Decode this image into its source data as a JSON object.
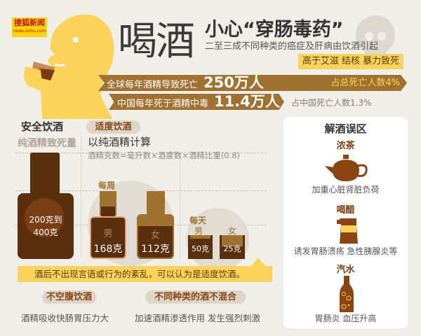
{
  "logo": {
    "name": "搜狐新闻",
    "url": "news.sohu.com"
  },
  "header": {
    "title": "喝酒",
    "headline": "小心“穿肠毒药”",
    "subtitle": "二至三成不同种类的癌症及肝病由饮酒引起",
    "callout": "高于艾滋 结核 暴力致死"
  },
  "stats": {
    "global": {
      "label": "全球每年酒精导致死亡",
      "value": "250万人",
      "share": "占总死亡人数4%"
    },
    "china": {
      "label": "中国每年死于酒精中毒",
      "value": "11.4万人",
      "share": "占中国死亡人数1.3%"
    }
  },
  "safe": {
    "title": "安全饮酒",
    "lethal_label": "纯酒精致死量",
    "lethal_value_1": "200克到",
    "lethal_value_2": "400克"
  },
  "moderate": {
    "tag": "适度饮酒",
    "basis": "以纯酒精计算",
    "formula": "酒精克数=毫升数×酒度数×酒精比重(0.8)",
    "weekly": {
      "label": "每周",
      "male": "男",
      "male_value": "168克",
      "female": "女",
      "female_value": "112克"
    },
    "daily": {
      "label": "每天",
      "male": "男",
      "male_value": "50克",
      "female": "女",
      "female_value": "25克"
    },
    "note": "酒后不出现言语或行为的紊乱，可以认为是适度饮酒。"
  },
  "tips": [
    {
      "tag": "不空腹饮酒",
      "text": "酒精吸收快肠胃压力大"
    },
    {
      "tag": "不同种类的酒不混合",
      "text": "加速酒精渗透作用 发生强烈刺激"
    }
  ],
  "myths": {
    "title": "解酒误区",
    "items": [
      {
        "name": "浓茶",
        "effect": "加重心脏肾脏负荷",
        "icon": "teapot-icon"
      },
      {
        "name": "喝醋",
        "effect": "诱发胃肠溃疡 急性胰腺炎等",
        "icon": "vinegar-jug-icon"
      },
      {
        "name": "汽水",
        "effect": "胃肠炎 血压升高",
        "icon": "soda-bottle-icon"
      }
    ]
  },
  "colors": {
    "brown": "#a0712f",
    "dark_brown": "#5a2f0e",
    "yellow": "#fcd35a",
    "background": "#efeee9"
  }
}
